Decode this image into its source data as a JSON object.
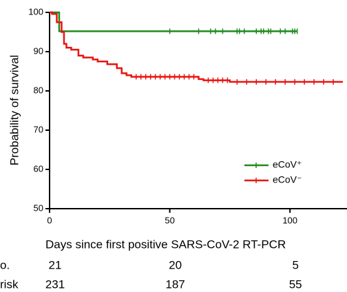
{
  "chart_data": {
    "type": "step",
    "ylabel": "Probability of survival",
    "xlabel": "Days since first positive SARS-CoV-2 RT-PCR",
    "xlim": [
      0,
      122
    ],
    "ylim": [
      50,
      100
    ],
    "xticks": [
      0,
      50,
      100
    ],
    "yticks": [
      50,
      60,
      70,
      80,
      90,
      100
    ],
    "series": [
      {
        "name": "eCoV⁺",
        "color": "#1e8a1e",
        "x": [
          0,
          4,
          103
        ],
        "values": [
          100,
          95.2,
          95.2
        ],
        "censored": {
          "x": [
            50,
            62,
            67,
            69,
            72,
            78,
            79,
            81,
            86,
            88,
            89,
            91,
            92,
            96,
            98,
            101,
            102,
            103
          ],
          "values": [
            95.2,
            95.2,
            95.2,
            95.2,
            95.2,
            95.2,
            95.2,
            95.2,
            95.2,
            95.2,
            95.2,
            95.2,
            95.2,
            95.2,
            95.2,
            95.2,
            95.2,
            95.2
          ]
        }
      },
      {
        "name": "eCoV⁻",
        "color": "#e8140f",
        "x": [
          0,
          1,
          3,
          5,
          6,
          7,
          9,
          12,
          14,
          18,
          20,
          24,
          28,
          30,
          32,
          34,
          62,
          64,
          75,
          122
        ],
        "values": [
          100,
          99.6,
          97.5,
          95,
          92,
          91,
          90.5,
          89,
          88.5,
          88,
          87.5,
          86.8,
          85.8,
          84.5,
          84,
          83.6,
          83,
          82.7,
          82.3,
          82.3
        ],
        "censored": {
          "x": [
            36,
            38,
            40,
            42,
            44,
            46,
            48,
            50,
            52,
            54,
            56,
            58,
            60,
            66,
            68,
            70,
            72,
            74,
            78,
            82,
            86,
            90,
            94,
            98,
            102,
            106,
            110,
            114,
            118
          ],
          "values": [
            83.6,
            83.6,
            83.6,
            83.6,
            83.6,
            83.6,
            83.6,
            83.6,
            83.6,
            83.6,
            83.6,
            83.6,
            83.6,
            82.7,
            82.7,
            82.7,
            82.7,
            82.7,
            82.3,
            82.3,
            82.3,
            82.3,
            82.3,
            82.3,
            82.3,
            82.3,
            82.3,
            82.3,
            82.3
          ]
        }
      }
    ],
    "risk_table": {
      "x": [
        0,
        50,
        100
      ],
      "rows": [
        {
          "label": "o.",
          "values": [
            21,
            20,
            5
          ]
        },
        {
          "label": "risk",
          "values": [
            231,
            187,
            55
          ]
        }
      ]
    }
  }
}
